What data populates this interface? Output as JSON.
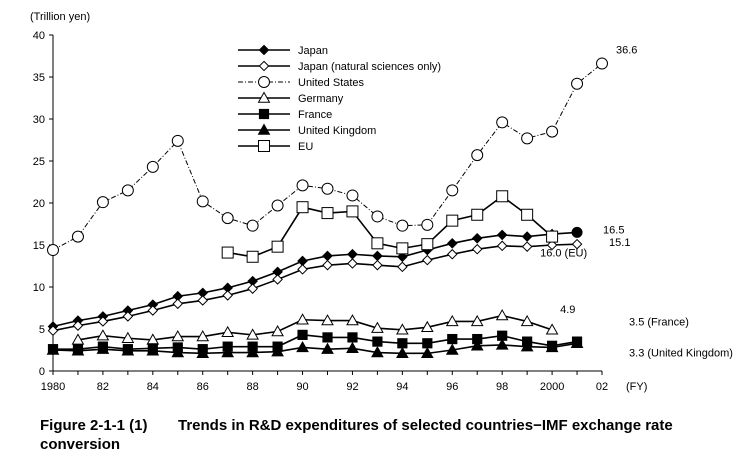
{
  "chart_data": {
    "type": "line",
    "title": "",
    "ylabel": "(Trillion yen)",
    "xlabel": "(FY)",
    "ylim": [
      0,
      40
    ],
    "yticks": [
      0,
      5,
      10,
      15,
      20,
      25,
      30,
      35,
      40
    ],
    "xlim": [
      1980,
      2002
    ],
    "xtick_values": [
      1980,
      1982,
      1984,
      1986,
      1988,
      1990,
      1992,
      1994,
      1996,
      1998,
      2000,
      2002
    ],
    "xtick_labels": [
      "1980",
      "82",
      "84",
      "86",
      "88",
      "90",
      "92",
      "94",
      "96",
      "98",
      "2000",
      "02"
    ],
    "grid": false,
    "legend_position": "top-center",
    "series": [
      {
        "name": "Japan",
        "style": "solid",
        "marker": "filled-diamond",
        "x": [
          1980,
          1981,
          1982,
          1983,
          1984,
          1985,
          1986,
          1987,
          1988,
          1989,
          1990,
          1991,
          1992,
          1993,
          1994,
          1995,
          1996,
          1997,
          1998,
          1999,
          2000,
          2001
        ],
        "values": [
          5.3,
          6.0,
          6.5,
          7.2,
          7.9,
          8.9,
          9.3,
          9.9,
          10.7,
          11.8,
          13.1,
          13.7,
          13.9,
          13.7,
          13.6,
          14.4,
          15.2,
          15.8,
          16.2,
          16.0,
          16.3,
          16.5
        ]
      },
      {
        "name": "Japan (natural sciences only)",
        "style": "solid",
        "marker": "open-diamond",
        "x": [
          1980,
          1981,
          1982,
          1983,
          1984,
          1985,
          1986,
          1987,
          1988,
          1989,
          1990,
          1991,
          1992,
          1993,
          1994,
          1995,
          1996,
          1997,
          1998,
          1999,
          2000,
          2001
        ],
        "values": [
          4.8,
          5.4,
          5.9,
          6.5,
          7.2,
          8.0,
          8.4,
          9.0,
          9.8,
          10.9,
          12.1,
          12.6,
          12.8,
          12.6,
          12.4,
          13.2,
          13.9,
          14.5,
          14.9,
          14.8,
          15.0,
          15.1
        ]
      },
      {
        "name": "United States",
        "style": "dash-dot",
        "marker": "open-circle",
        "x": [
          1980,
          1981,
          1982,
          1983,
          1984,
          1985,
          1986,
          1987,
          1988,
          1989,
          1990,
          1991,
          1992,
          1993,
          1994,
          1995,
          1996,
          1997,
          1998,
          1999,
          2000,
          2001,
          2002
        ],
        "values": [
          14.4,
          16.0,
          20.1,
          21.5,
          24.3,
          27.4,
          20.2,
          18.2,
          17.3,
          19.7,
          22.1,
          21.7,
          20.9,
          18.4,
          17.3,
          17.4,
          21.5,
          25.7,
          29.6,
          27.7,
          28.5,
          34.2,
          36.6
        ]
      },
      {
        "name": "Germany",
        "style": "solid",
        "marker": "open-triangle",
        "x": [
          1981,
          1982,
          1983,
          1984,
          1985,
          1986,
          1987,
          1988,
          1989,
          1990,
          1991,
          1992,
          1993,
          1994,
          1995,
          1996,
          1997,
          1998,
          1999,
          2000
        ],
        "values": [
          3.7,
          4.2,
          3.9,
          3.7,
          4.1,
          4.1,
          4.6,
          4.3,
          4.7,
          6.1,
          6.0,
          6.0,
          5.1,
          4.9,
          5.2,
          5.9,
          5.9,
          6.6,
          5.9,
          4.9
        ]
      },
      {
        "name": "France",
        "style": "solid",
        "marker": "filled-square",
        "x": [
          1980,
          1981,
          1982,
          1983,
          1984,
          1985,
          1986,
          1987,
          1988,
          1989,
          1990,
          1991,
          1992,
          1993,
          1994,
          1995,
          1996,
          1997,
          1998,
          1999,
          2000,
          2001
        ],
        "values": [
          2.6,
          2.6,
          2.9,
          2.6,
          2.7,
          2.8,
          2.6,
          2.9,
          2.9,
          2.9,
          4.3,
          4.0,
          4.0,
          3.5,
          3.3,
          3.3,
          3.8,
          3.8,
          4.2,
          3.5,
          3.0,
          3.5
        ]
      },
      {
        "name": "United Kingdom",
        "style": "solid",
        "marker": "filled-triangle",
        "x": [
          1980,
          1981,
          1982,
          1983,
          1984,
          1985,
          1986,
          1987,
          1988,
          1989,
          1990,
          1991,
          1992,
          1993,
          1994,
          1995,
          1996,
          1997,
          1998,
          1999,
          2000,
          2001
        ],
        "values": [
          2.5,
          2.4,
          2.6,
          2.4,
          2.4,
          2.2,
          2.1,
          2.2,
          2.2,
          2.3,
          2.8,
          2.6,
          2.7,
          2.2,
          2.1,
          2.1,
          2.5,
          3.0,
          3.1,
          2.9,
          2.8,
          3.3
        ]
      },
      {
        "name": "EU",
        "style": "solid",
        "marker": "open-square",
        "x": [
          1987,
          1988,
          1989,
          1990,
          1991,
          1992,
          1993,
          1994,
          1995,
          1996,
          1997,
          1998,
          1999,
          2000
        ],
        "values": [
          14.1,
          13.6,
          14.8,
          19.5,
          18.8,
          19.0,
          15.2,
          14.6,
          15.1,
          17.9,
          18.6,
          20.8,
          18.6,
          16.0
        ]
      }
    ],
    "annotations": [
      {
        "text": "36.6",
        "x": 2002,
        "y": 36.6
      },
      {
        "text": "16.5",
        "x": 2001,
        "y": 16.5
      },
      {
        "text": "15.1",
        "x": 2001,
        "y": 15.1
      },
      {
        "text": "16.0 (EU)",
        "x": 2000,
        "y": 16.0
      },
      {
        "text": "4.9",
        "x": 2000,
        "y": 4.9
      },
      {
        "text": "3.5  (France)",
        "x": 2001,
        "y": 3.5
      },
      {
        "text": "3.3 (United Kingdom)",
        "x": 2001,
        "y": 3.3
      }
    ]
  },
  "caption": {
    "number": "Figure 2-1-1 (1)",
    "title": "Trends in R&D expenditures of selected countries−IMF exchange rate conversion"
  }
}
